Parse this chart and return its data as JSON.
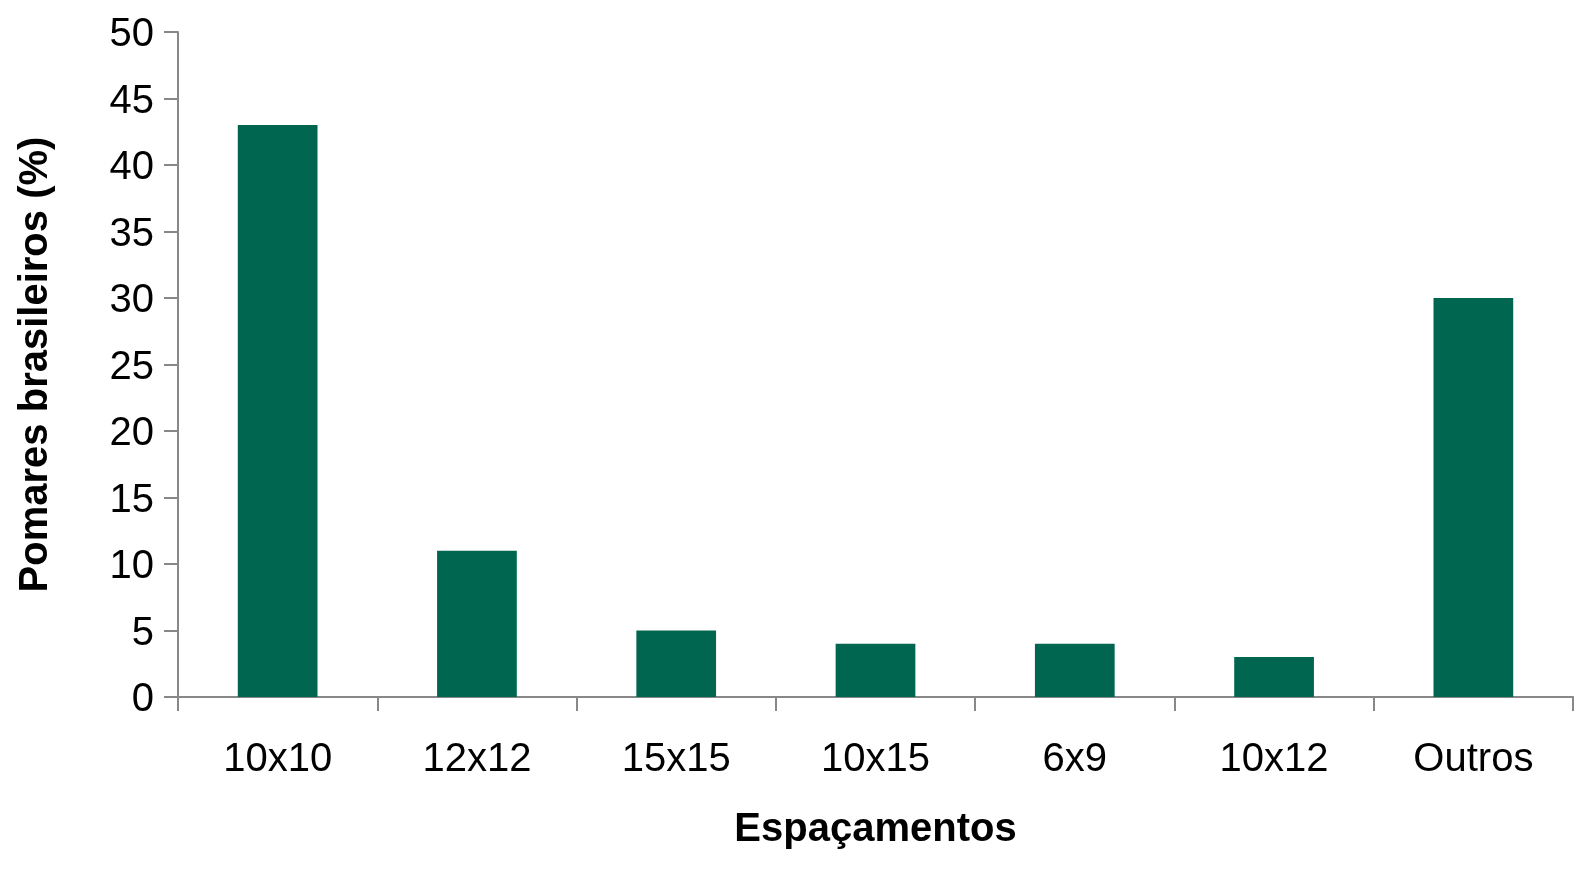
{
  "chart_data": {
    "type": "bar",
    "xlabel": "Espaçamentos",
    "ylabel": "Pomares brasileiros (%)",
    "categories": [
      "10x10",
      "12x12",
      "15x15",
      "10x15",
      "6x9",
      "10x12",
      "Outros"
    ],
    "values": [
      43,
      11,
      5,
      4,
      4,
      3,
      30
    ],
    "color": "#006650",
    "ylim": [
      0,
      50
    ],
    "yticks": [
      0,
      5,
      10,
      15,
      20,
      25,
      30,
      35,
      40,
      45,
      50
    ],
    "grid": false
  }
}
